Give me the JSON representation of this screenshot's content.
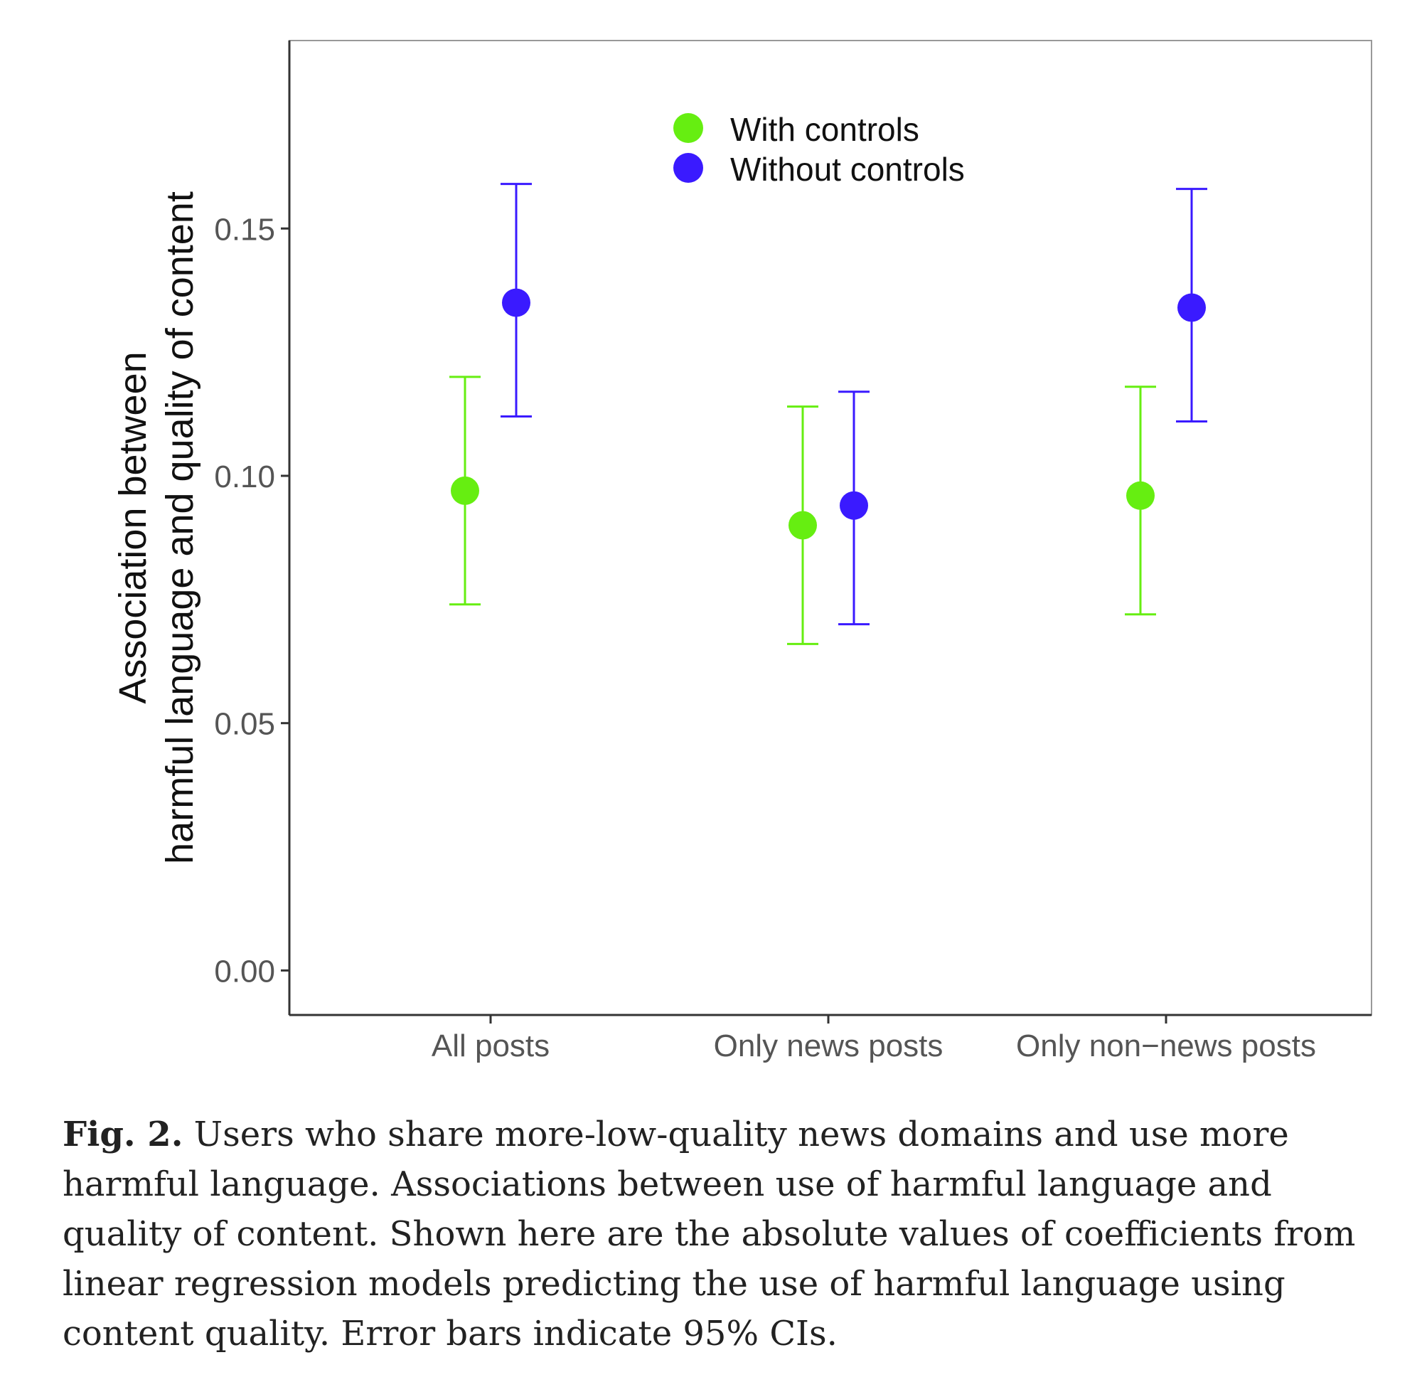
{
  "colors": {
    "with_controls": "#66ee11",
    "without_controls": "#3a1aff",
    "axis": "#333333",
    "tick_text": "#555555",
    "ylabel_text": "#111111"
  },
  "chart_data": {
    "type": "scatter",
    "title": "",
    "xlabel": "",
    "ylabel_line1": "Association between",
    "ylabel_line2": "harmful language and quality of content",
    "categories": [
      "All posts",
      "Only news posts",
      "Only non−news posts"
    ],
    "ylim": [
      -0.009,
      0.188
    ],
    "yticks": [
      0.0,
      0.05,
      0.1,
      0.15
    ],
    "ytick_labels": [
      "0.00",
      "0.05",
      "0.10",
      "0.15"
    ],
    "grid": false,
    "legend_placement": "top-center",
    "series": [
      {
        "name": "With controls",
        "color_key": "with_controls",
        "values": [
          0.097,
          0.09,
          0.096
        ],
        "ci_low": [
          0.074,
          0.066,
          0.072
        ],
        "ci_high": [
          0.12,
          0.114,
          0.118
        ]
      },
      {
        "name": "Without controls",
        "color_key": "without_controls",
        "values": [
          0.135,
          0.094,
          0.134
        ],
        "ci_low": [
          0.112,
          0.07,
          0.111
        ],
        "ci_high": [
          0.159,
          0.117,
          0.158
        ]
      }
    ]
  },
  "caption": {
    "label": "Fig. 2.",
    "text": "Users who share more-low-quality news domains and use more harmful language. Associations between use of harmful language and quality of content. Shown here are the absolute values of coefficients from linear regression models predicting the use of harmful language using content quality. Error bars indicate 95% CIs."
  }
}
